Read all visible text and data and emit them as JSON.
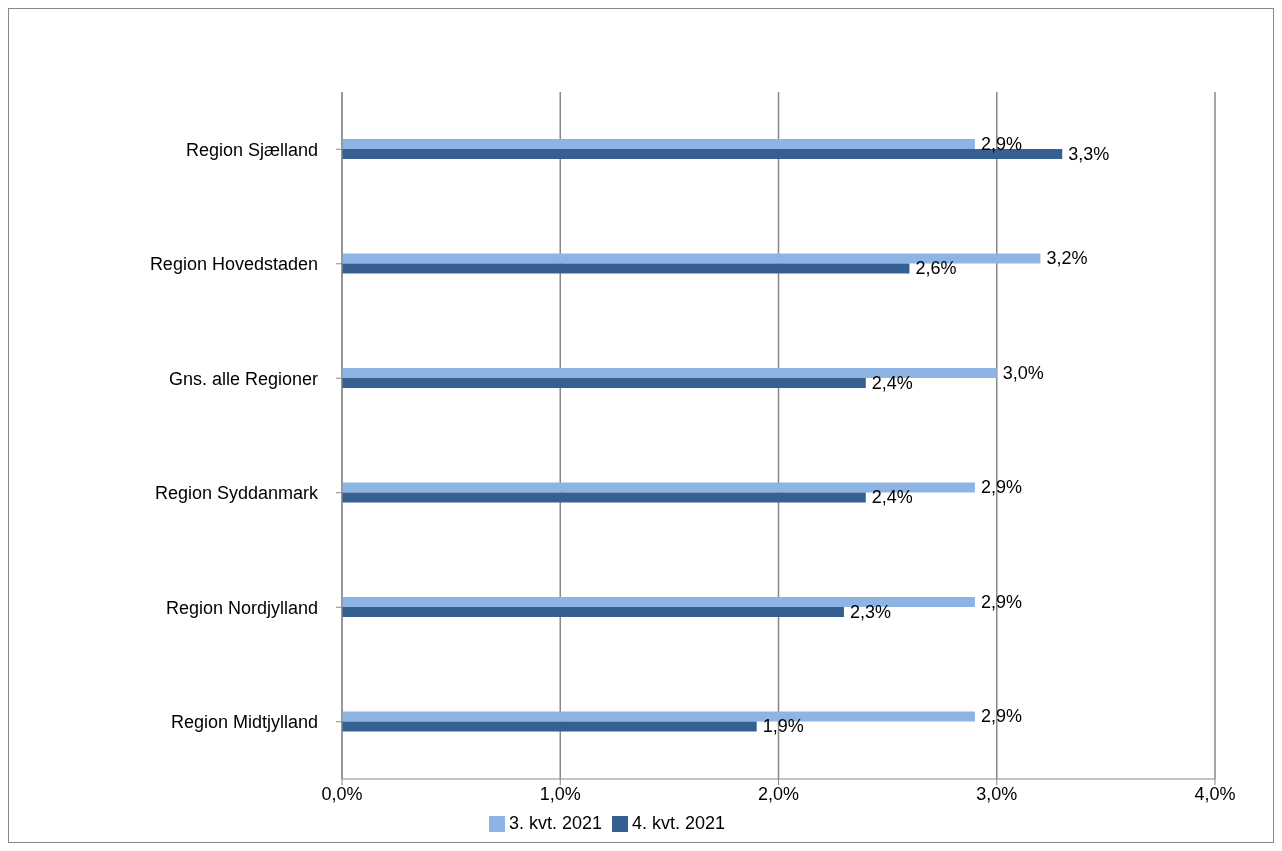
{
  "chart_data": {
    "type": "bar",
    "orientation": "horizontal",
    "categories": [
      "Region Sjælland",
      "Region Hovedstaden",
      "Gns. alle Regioner",
      "Region Syddanmark",
      "Region Nordjylland",
      "Region Midtjylland"
    ],
    "series": [
      {
        "name": "3. kvt. 2021",
        "color": "#8eb4e3",
        "values": [
          2.9,
          3.2,
          3.0,
          2.9,
          2.9,
          2.9
        ],
        "value_labels": [
          "2,9%",
          "3,2%",
          "3,0%",
          "2,9%",
          "2,9%",
          "2,9%"
        ]
      },
      {
        "name": "4. kvt. 2021",
        "color": "#376092",
        "values": [
          3.3,
          2.6,
          2.4,
          2.4,
          2.3,
          1.9
        ],
        "value_labels": [
          "3,3%",
          "2,6%",
          "2,4%",
          "2,4%",
          "2,3%",
          "1,9%"
        ]
      }
    ],
    "xlim": [
      0,
      4
    ],
    "xticks": [
      {
        "value": 0,
        "label": "0,0%"
      },
      {
        "value": 1,
        "label": "1,0%"
      },
      {
        "value": 2,
        "label": "2,0%"
      },
      {
        "value": 3,
        "label": "3,0%"
      },
      {
        "value": 4,
        "label": "4,0%"
      }
    ],
    "grid": "x",
    "legend": "bottom"
  }
}
